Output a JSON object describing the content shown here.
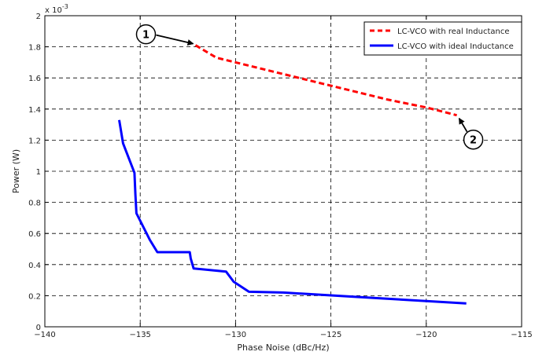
{
  "chart_data": {
    "type": "line",
    "xlabel": "Phase Noise (dBc/Hz)",
    "ylabel": "Power (W)",
    "y_multiplier": "x 10",
    "y_exponent": "-3",
    "xlim": [
      -140,
      -115
    ],
    "ylim": [
      0,
      2
    ],
    "x_ticks": [
      -140,
      -135,
      -130,
      -125,
      -120,
      -115
    ],
    "x_tick_labels": [
      "-140",
      "-135",
      "-130",
      "-125",
      "-120",
      "-115"
    ],
    "y_ticks": [
      0,
      0.2,
      0.4,
      0.6,
      0.8,
      1,
      1.2,
      1.4,
      1.6,
      1.8,
      2
    ],
    "y_tick_labels": [
      "0",
      "0.2",
      "0.4",
      "0.6",
      "0.8",
      "1",
      "1.2",
      "1.4",
      "1.6",
      "1.8",
      "2"
    ],
    "grid": true,
    "legend_position": "top-right",
    "series": [
      {
        "name": "LC-VCO with real Inductance",
        "color": "#ff0000",
        "dash": "dashed",
        "x": [
          -132.1,
          -131.0,
          -130.0,
          -128.0,
          -126.0,
          -124.0,
          -122.0,
          -120.0,
          -118.4
        ],
        "y": [
          1.81,
          1.73,
          1.7,
          1.64,
          1.58,
          1.52,
          1.46,
          1.41,
          1.36
        ]
      },
      {
        "name": "LC-VCO with ideal Inductance",
        "color": "#0000ff",
        "dash": "solid",
        "x": [
          -136.1,
          -135.9,
          -135.3,
          -135.25,
          -135.2,
          -134.5,
          -134.1,
          -132.4,
          -132.35,
          -132.2,
          -130.5,
          -130.1,
          -129.3,
          -127.5,
          -117.9
        ],
        "y": [
          1.33,
          1.18,
          0.99,
          0.85,
          0.73,
          0.56,
          0.48,
          0.48,
          0.44,
          0.375,
          0.355,
          0.29,
          0.225,
          0.22,
          0.15
        ]
      }
    ],
    "annotations": [
      {
        "label": "1",
        "target_x": -132.1,
        "target_y": 1.81
      },
      {
        "label": "2",
        "target_x": -118.4,
        "target_y": 1.36
      }
    ]
  }
}
